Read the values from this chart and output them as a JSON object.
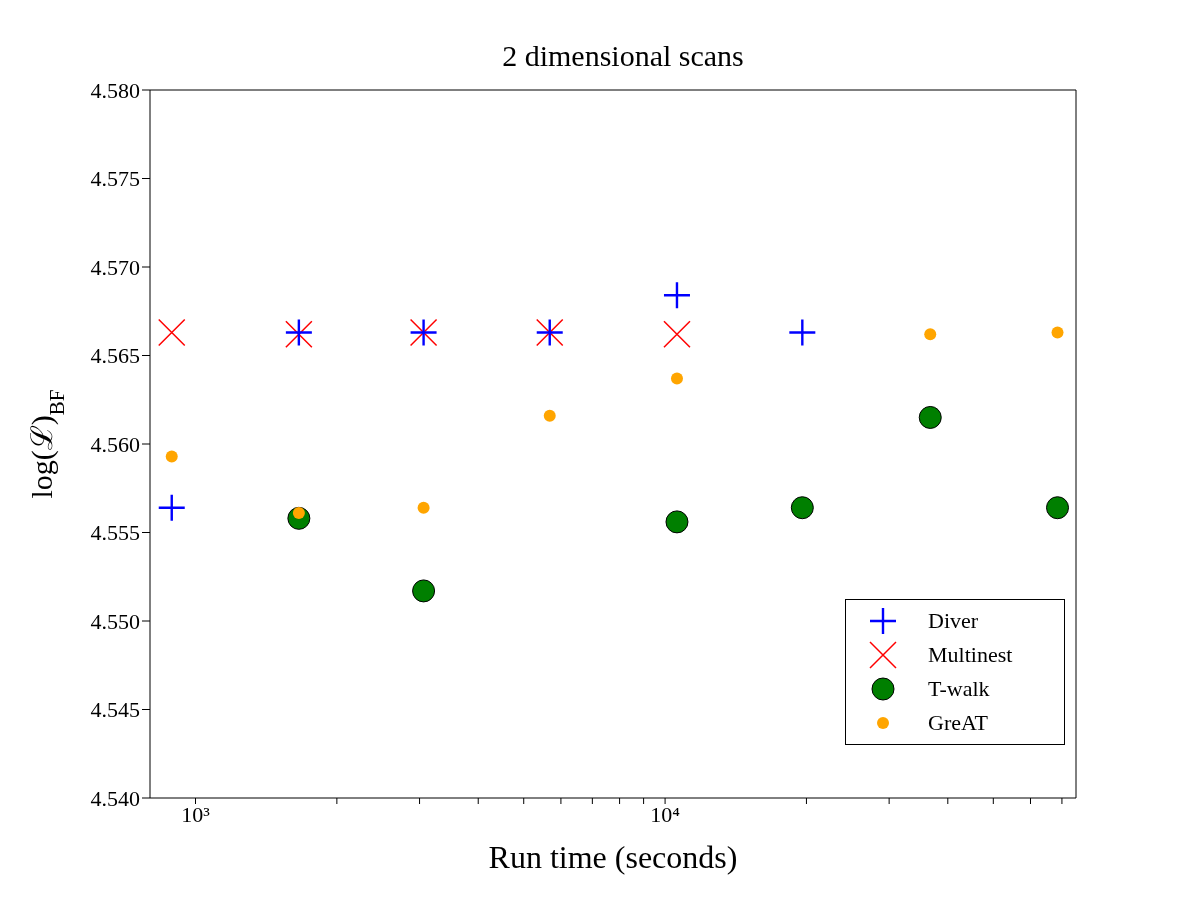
{
  "chart_data": {
    "type": "scatter",
    "title": "2 dimensional scans",
    "xlabel": "Run time (seconds)",
    "ylabel": "log(ℒ)$_{BF}$",
    "log": "x",
    "xlim": [
      800,
      75000
    ],
    "xticks": [
      {
        "value": 1000,
        "label": "10³"
      },
      {
        "value": 2000,
        "label": null
      },
      {
        "value": 3000,
        "label": null
      },
      {
        "value": 4000,
        "label": null
      },
      {
        "value": 5000,
        "label": null
      },
      {
        "value": 6000,
        "label": null
      },
      {
        "value": 7000,
        "label": null
      },
      {
        "value": 8000,
        "label": null
      },
      {
        "value": 9000,
        "label": null
      },
      {
        "value": 10000,
        "label": "10⁴"
      },
      {
        "value": 20000,
        "label": null
      },
      {
        "value": 30000,
        "label": null
      },
      {
        "value": 40000,
        "label": null
      },
      {
        "value": 50000,
        "label": null
      },
      {
        "value": 60000,
        "label": null
      },
      {
        "value": 70000,
        "label": null
      }
    ],
    "ylim": [
      4.54,
      4.58
    ],
    "yticks": [
      {
        "value": 4.54,
        "label": "4.540"
      },
      {
        "value": 4.545,
        "label": "4.545"
      },
      {
        "value": 4.55,
        "label": "4.550"
      },
      {
        "value": 4.555,
        "label": "4.555"
      },
      {
        "value": 4.56,
        "label": "4.560"
      },
      {
        "value": 4.565,
        "label": "4.565"
      },
      {
        "value": 4.57,
        "label": "4.570"
      },
      {
        "value": 4.575,
        "label": "4.575"
      },
      {
        "value": 4.58,
        "label": "4.580"
      }
    ],
    "grid": false,
    "legend": "bottom right",
    "series": [
      {
        "name": "Diver",
        "color": "#0000ff",
        "marker": "plus",
        "x": [
          890,
          1660,
          3060,
          5680,
          10600,
          19600
        ],
        "values": [
          4.5564,
          4.5663,
          4.5663,
          4.5663,
          4.5684,
          4.5663
        ]
      },
      {
        "name": "Multinest",
        "color": "#ff0000",
        "marker": "cross",
        "x": [
          890,
          1660,
          3060,
          5680,
          10600
        ],
        "values": [
          4.5663,
          4.5662,
          4.5663,
          4.5663,
          4.5662
        ]
      },
      {
        "name": "T-walk",
        "color": "#007f00",
        "marker": "circle",
        "x": [
          1660,
          3060,
          10600,
          19600,
          36700,
          68500
        ],
        "values": [
          4.5558,
          4.5517,
          4.5556,
          4.5564,
          4.5615,
          4.5564
        ]
      },
      {
        "name": "GreAT",
        "color": "#ffa500",
        "marker": "circle",
        "x": [
          890,
          1660,
          3060,
          5680,
          10600,
          36700,
          68500
        ],
        "values": [
          4.5593,
          4.5561,
          4.5564,
          4.5616,
          4.5637,
          4.5662,
          4.5663
        ]
      }
    ]
  }
}
